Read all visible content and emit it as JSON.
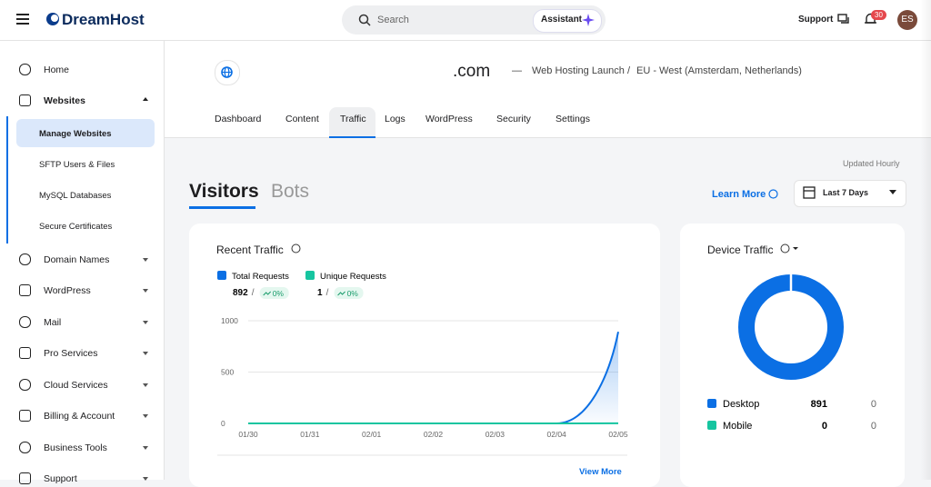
{
  "header": {
    "logo": "DreamHost",
    "search_placeholder": "Search",
    "assistant": "Assistant",
    "support": "Support",
    "notifications": "30",
    "avatar": "ES"
  },
  "sidebar": {
    "items": [
      "Home",
      "Websites",
      "Domain Names",
      "WordPress",
      "Mail",
      "Pro Services",
      "Cloud Services",
      "Billing & Account",
      "Business Tools",
      "Support"
    ],
    "subitems": [
      "Manage Websites",
      "SFTP Users & Files",
      "MySQL Databases",
      "Secure Certificates"
    ]
  },
  "site": {
    "domain": ".com",
    "plan": "Web Hosting Launch",
    "region": "EU - West (Amsterdam, Netherlands)"
  },
  "tabs": [
    "Dashboard",
    "Content",
    "Traffic",
    "Logs",
    "WordPress",
    "Security",
    "Settings"
  ],
  "traffic": {
    "updated": "Updated Hourly",
    "views": [
      "Visitors",
      "Bots"
    ],
    "learn_more": "Learn More",
    "range": "Last 7 Days"
  },
  "recent_traffic": {
    "title": "Recent Traffic",
    "view_more": "View More",
    "chart": {
      "type": "line",
      "x": [
        "01/30",
        "01/31",
        "02/01",
        "02/02",
        "02/03",
        "02/04",
        "02/05"
      ],
      "ylim": [
        0,
        1000
      ],
      "yticks": [
        0,
        500,
        1000
      ],
      "series": [
        {
          "name": "Total Requests",
          "color": "#0b6fe4",
          "total": 892,
          "change": "0%",
          "values": [
            0,
            0,
            0,
            0,
            0,
            0,
            892
          ]
        },
        {
          "name": "Unique Requests",
          "color": "#16c5a0",
          "total": 1,
          "change": "0%",
          "values": [
            0,
            0,
            0,
            0,
            0,
            0,
            1
          ]
        }
      ]
    }
  },
  "device_traffic": {
    "title": "Device Traffic",
    "chart": {
      "type": "pie",
      "categories": [
        "Desktop",
        "Mobile"
      ],
      "values": [
        891,
        0
      ],
      "secondary_values": [
        0,
        0
      ],
      "colors": [
        "#0b6fe4",
        "#16c5a0"
      ]
    }
  }
}
